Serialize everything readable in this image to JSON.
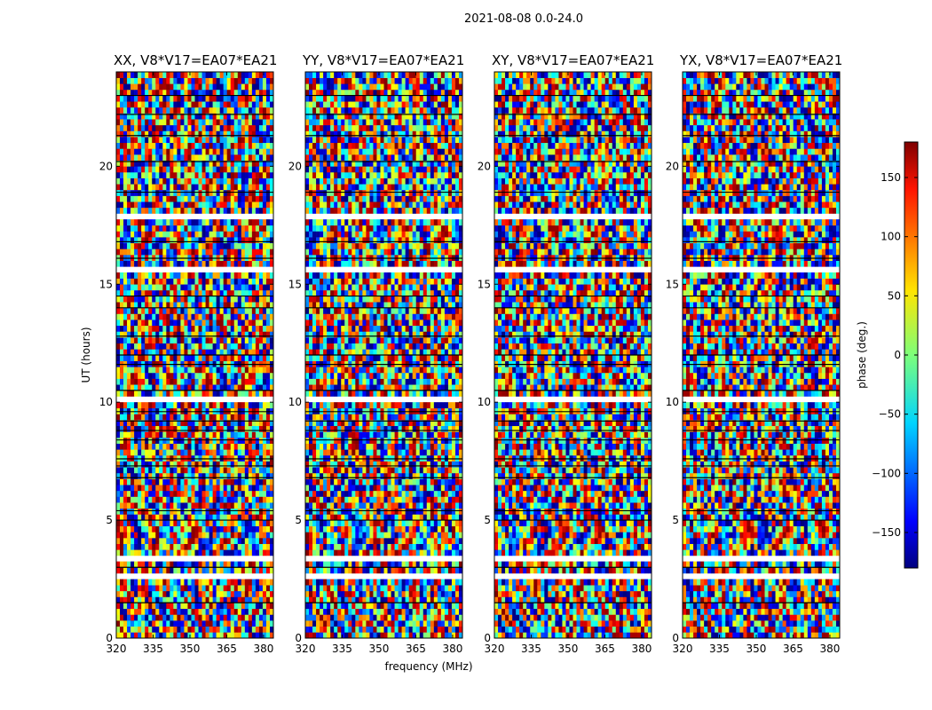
{
  "chart_data": {
    "type": "heatmap",
    "suptitle": "2021-08-08 0.0-24.0",
    "panels": [
      {
        "title": "XX, V8*V17=EA07*EA21",
        "pol": "XX"
      },
      {
        "title": "YY, V8*V17=EA07*EA21",
        "pol": "YY"
      },
      {
        "title": "XY, V8*V17=EA07*EA21",
        "pol": "XY"
      },
      {
        "title": "YX, V8*V17=EA07*EA21",
        "pol": "YX"
      }
    ],
    "xlabel": "frequency (MHz)",
    "ylabel": "UT (hours)",
    "xlim": [
      320,
      384
    ],
    "ylim": [
      0,
      24
    ],
    "xticks": [
      320,
      335,
      350,
      365,
      380
    ],
    "yticks": [
      0,
      5,
      10,
      15,
      20
    ],
    "colorbar": {
      "label": "phase (deg.)",
      "range": [
        -180,
        180
      ],
      "ticks": [
        150,
        100,
        50,
        0,
        -50,
        -100,
        -150
      ],
      "tick_labels": [
        "150",
        "100",
        "50",
        "0",
        "−50",
        "−100",
        "−150"
      ],
      "colormap": "jet"
    }
  }
}
